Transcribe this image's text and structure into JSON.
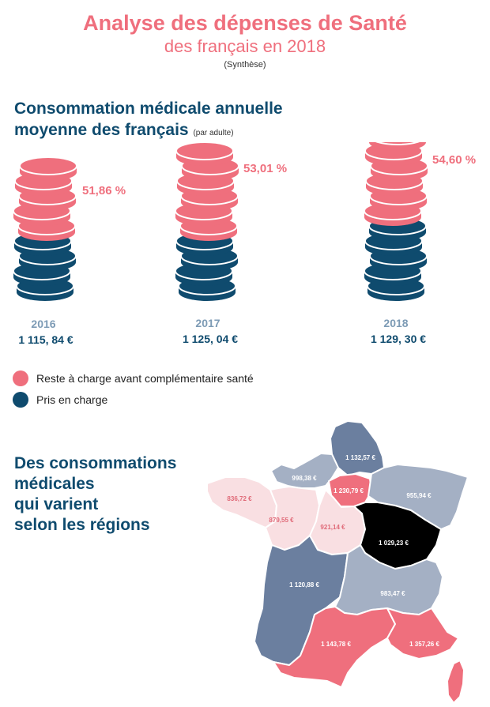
{
  "header": {
    "title": "Analyse des dépenses de Santé",
    "subtitle": "des français en 2018",
    "note": "(Synthèse)"
  },
  "section1": {
    "title_line1": "Consommation médicale annuelle",
    "title_line2": "moyenne des français",
    "title_small": "(par adulte)"
  },
  "legend": {
    "items": [
      {
        "label": "Reste à charge avant complémentaire santé",
        "color": "#ef6f7d"
      },
      {
        "label": "Pris en charge",
        "color": "#0f4b6e"
      }
    ]
  },
  "section2": {
    "line1": "Des consommations",
    "line2": "médicales",
    "line3": "qui varient",
    "line4": "selon les régions"
  },
  "chart_data": [
    {
      "type": "bar",
      "categories": [
        "2016",
        "2017",
        "2018"
      ],
      "totals": [
        "1 115, 84 €",
        "1 125, 04 €",
        "1 129, 30 €"
      ],
      "percent_labels": [
        "51,86 %",
        "53,01 %",
        "54,60 %"
      ],
      "series": [
        {
          "name": "Reste à charge avant complémentaire santé",
          "values": [
            51.86,
            53.01,
            54.6
          ],
          "color": "#ef6f7d"
        },
        {
          "name": "Pris en charge",
          "values": [
            48.14,
            46.99,
            45.4
          ],
          "color": "#0f4b6e"
        }
      ],
      "coin_counts": {
        "pink": [
          5,
          6,
          7
        ],
        "navy": [
          4,
          4,
          5
        ]
      }
    },
    {
      "type": "map",
      "regions": [
        {
          "id": "hauts-de-france",
          "value": "1 132,57 €",
          "color": "#6b7f9f",
          "label_color": "#ffffff"
        },
        {
          "id": "normandie",
          "value": "998,38 €",
          "color": "#a4b0c4",
          "label_color": "#ffffff"
        },
        {
          "id": "ile-de-france",
          "value": "1 230,79 €",
          "color": "#ef6f7d",
          "label_color": "#ffffff"
        },
        {
          "id": "grand-est",
          "value": "955,94 €",
          "color": "#a4b0c4",
          "label_color": "#ffffff"
        },
        {
          "id": "bretagne",
          "value": "836,72 €",
          "color": "#f9dfe2",
          "label_color": "#e06a78"
        },
        {
          "id": "pays-de-la-loire",
          "value": "879,55 €",
          "color": "#f9dfe2",
          "label_color": "#e06a78"
        },
        {
          "id": "centre-val-de-loire",
          "value": "921,14 €",
          "color": "#f9dfe2",
          "label_color": "#e06a78"
        },
        {
          "id": "bourgogne-franche-comte",
          "value": "1 029,23 €",
          "color": "#6b7f9f",
          "label_color": "#ffffff"
        },
        {
          "id": "nouvelle-aquitaine",
          "value": "1 120,88 €",
          "color": "#6b7f9f",
          "label_color": "#ffffff"
        },
        {
          "id": "auvergne-rhone-alpes",
          "value": "983,47 €",
          "color": "#a4b0c4",
          "label_color": "#ffffff"
        },
        {
          "id": "occitanie",
          "value": "1 143,78 €",
          "color": "#ef6f7d",
          "label_color": "#ffffff"
        },
        {
          "id": "paca",
          "value": "1 357,26 €",
          "color": "#ef6f7d",
          "label_color": "#ffffff"
        },
        {
          "id": "corse",
          "value": "",
          "color": "#ef6f7d",
          "label_color": "#ffffff"
        }
      ]
    }
  ]
}
